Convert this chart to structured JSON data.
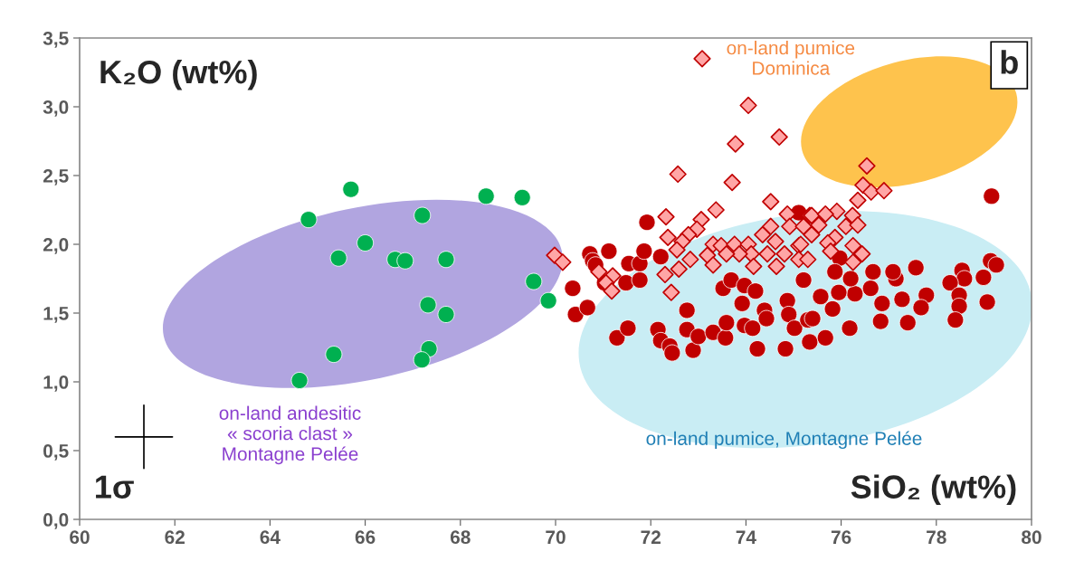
{
  "chart_data": {
    "type": "scatter",
    "xlabel": "SiO₂ (wt%)",
    "ylabel": "K₂O (wt%)",
    "xlim": [
      60,
      80
    ],
    "xticks": [
      60,
      62,
      64,
      66,
      68,
      70,
      72,
      74,
      76,
      78,
      80
    ],
    "ylim": [
      0,
      3.5
    ],
    "yticks": [
      {
        "value": 0,
        "label": "0,0"
      },
      {
        "value": 0.5,
        "label": "0,5"
      },
      {
        "value": 1,
        "label": "1,0"
      },
      {
        "value": 1.5,
        "label": "1,5"
      },
      {
        "value": 2,
        "label": "2,0"
      },
      {
        "value": 2.5,
        "label": "2,5"
      },
      {
        "value": 3,
        "label": "3,0"
      },
      {
        "value": 3.5,
        "label": "3,5"
      }
    ],
    "grid": false,
    "legend": false,
    "annotations": [
      "b",
      "1σ",
      "on-land andesitic\n« scoria clast »\nMontagne Pelée",
      "on-land pumice, Montagne Pelée",
      "on-land pumice\nDominica"
    ],
    "series": [
      {
        "color": "#00b050",
        "marker": "circle",
        "x": [
          64.62,
          65.34,
          64.81,
          65.7,
          65.44,
          66.0,
          66.63,
          66.84,
          67.2,
          67.32,
          67.34,
          67.19,
          67.7,
          67.7,
          68.54,
          69.3,
          69.54,
          69.85
        ],
        "values": [
          1.01,
          1.2,
          2.18,
          2.4,
          1.9,
          2.01,
          1.89,
          1.88,
          2.21,
          1.56,
          1.24,
          1.16,
          1.89,
          1.49,
          2.35,
          2.34,
          1.73,
          1.59
        ]
      },
      {
        "color": "#c00000",
        "marker": "circle",
        "x": [
          71.92,
          70.72,
          71.12,
          70.78,
          70.84,
          71.03,
          70.36,
          70.42,
          70.67,
          71.29,
          71.52,
          71.54,
          71.77,
          71.86,
          72.21,
          71.48,
          71.77,
          72.15,
          72.21,
          72.4,
          72.45,
          72.76,
          72.76,
          72.89,
          73.0,
          73.31,
          73.57,
          73.59,
          73.52,
          73.69,
          73.97,
          73.92,
          73.97,
          74.14,
          74.2,
          74.39,
          74.43,
          74.24,
          74.83,
          74.87,
          74.9,
          75.02,
          75.21,
          75.3,
          75.34,
          75.11,
          79.16,
          79.14,
          79.26,
          78.99,
          79.07,
          78.54,
          78.59,
          78.29,
          78.48,
          78.48,
          78.4,
          77.57,
          77.79,
          77.68,
          77.4,
          76.83,
          77.28,
          77.15,
          77.09,
          76.67,
          76.62,
          76.86,
          76.29,
          76.2,
          75.95,
          75.82,
          75.4,
          75.57,
          76.18,
          75.67,
          75.97,
          75.87
        ],
        "values": [
          2.16,
          1.93,
          1.95,
          1.88,
          1.85,
          1.72,
          1.68,
          1.49,
          1.54,
          1.32,
          1.39,
          1.86,
          1.86,
          1.95,
          1.91,
          1.72,
          1.74,
          1.38,
          1.3,
          1.26,
          1.21,
          1.52,
          1.38,
          1.23,
          1.33,
          1.36,
          1.32,
          1.43,
          1.68,
          1.74,
          1.7,
          1.57,
          1.41,
          1.39,
          1.66,
          1.52,
          1.46,
          1.24,
          1.24,
          1.59,
          1.49,
          1.39,
          1.74,
          1.45,
          1.29,
          2.23,
          2.35,
          1.88,
          1.85,
          1.76,
          1.58,
          1.81,
          1.75,
          1.72,
          1.63,
          1.55,
          1.45,
          1.83,
          1.63,
          1.54,
          1.43,
          1.44,
          1.6,
          1.75,
          1.8,
          1.8,
          1.68,
          1.57,
          1.64,
          1.75,
          1.65,
          1.53,
          1.46,
          1.62,
          1.39,
          1.32,
          1.9,
          1.8
        ]
      },
      {
        "color": "#ffa6a6",
        "marker": "diamond",
        "x": [
          73.08,
          74.05,
          74.7,
          73.78,
          72.57,
          73.71,
          74.52,
          72.32,
          73.37,
          73.06,
          72.97,
          72.36,
          72.79,
          72.66,
          72.55,
          72.83,
          73.19,
          73.31,
          73.48,
          73.76,
          74.05,
          74.11,
          73.86,
          73.59,
          73.31,
          72.59,
          72.3,
          72.43,
          69.98,
          70.15,
          70.91,
          71.2,
          71.06,
          71.18,
          74.16,
          74.64,
          74.35,
          74.52,
          74.62,
          74.87,
          74.92,
          75.11,
          75.11,
          75.21,
          75.34,
          74.81,
          74.45,
          76.54,
          76.46,
          76.63,
          76.9,
          76.35,
          75.91,
          75.38,
          75.67,
          76.24,
          76.1,
          76.35,
          75.53,
          75.38,
          75.87,
          75.72,
          76.25,
          76.44,
          76.25,
          75.78,
          75.15,
          75.3
        ],
        "values": [
          3.35,
          3.01,
          2.78,
          2.73,
          2.51,
          2.45,
          2.31,
          2.2,
          2.25,
          2.18,
          2.11,
          2.05,
          2.07,
          2.02,
          1.96,
          1.89,
          1.92,
          2.0,
          1.99,
          2.0,
          2.0,
          1.93,
          1.93,
          1.93,
          1.85,
          1.82,
          1.78,
          1.65,
          1.92,
          1.87,
          1.8,
          1.77,
          1.72,
          1.66,
          1.84,
          1.84,
          2.07,
          2.13,
          2.02,
          2.22,
          2.13,
          1.99,
          1.89,
          2.13,
          2.21,
          1.93,
          1.93,
          2.57,
          2.43,
          2.38,
          2.39,
          2.32,
          2.24,
          2.21,
          2.22,
          2.21,
          2.13,
          2.14,
          2.14,
          2.07,
          2.05,
          2.01,
          1.99,
          1.93,
          1.87,
          1.95,
          2.0,
          1.89
        ]
      }
    ]
  }
}
